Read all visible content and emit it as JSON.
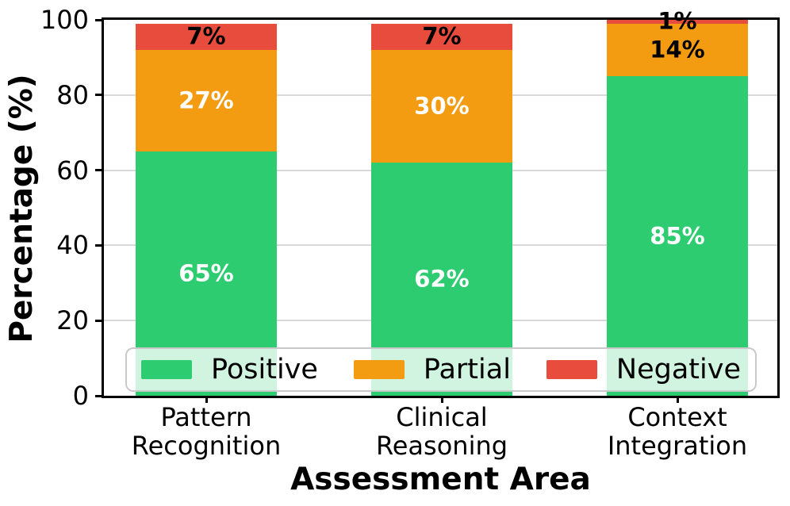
{
  "chart_data": {
    "type": "bar",
    "subtype": "stacked-vertical",
    "title": "",
    "xlabel": "Assessment Area",
    "ylabel": "Percentage (%)",
    "ylim": [
      0,
      100
    ],
    "yticks": [
      0,
      20,
      40,
      60,
      80,
      100
    ],
    "grid": "horizontal",
    "value_suffix": "%",
    "categories": [
      "Pattern\nRecognition",
      "Clinical\nReasoning",
      "Context\nIntegration"
    ],
    "series": [
      {
        "name": "Positive",
        "color": "#2ecc71",
        "values": [
          65,
          62,
          85
        ],
        "label_colors": [
          "#ffffff",
          "#ffffff",
          "#ffffff"
        ]
      },
      {
        "name": "Partial",
        "color": "#f39c12",
        "values": [
          27,
          30,
          14
        ],
        "label_colors": [
          "#ffffff",
          "#ffffff",
          "#000000"
        ]
      },
      {
        "name": "Negative",
        "color": "#e74c3c",
        "values": [
          7,
          7,
          1
        ],
        "label_colors": [
          "#000000",
          "#000000",
          "#000000"
        ]
      }
    ],
    "legend": {
      "position": "lower-center-inside",
      "entries": [
        "Positive",
        "Partial",
        "Negative"
      ]
    },
    "colors": {
      "spine": "#000000",
      "gridline": "#d9d9d9",
      "background": "#ffffff"
    }
  }
}
